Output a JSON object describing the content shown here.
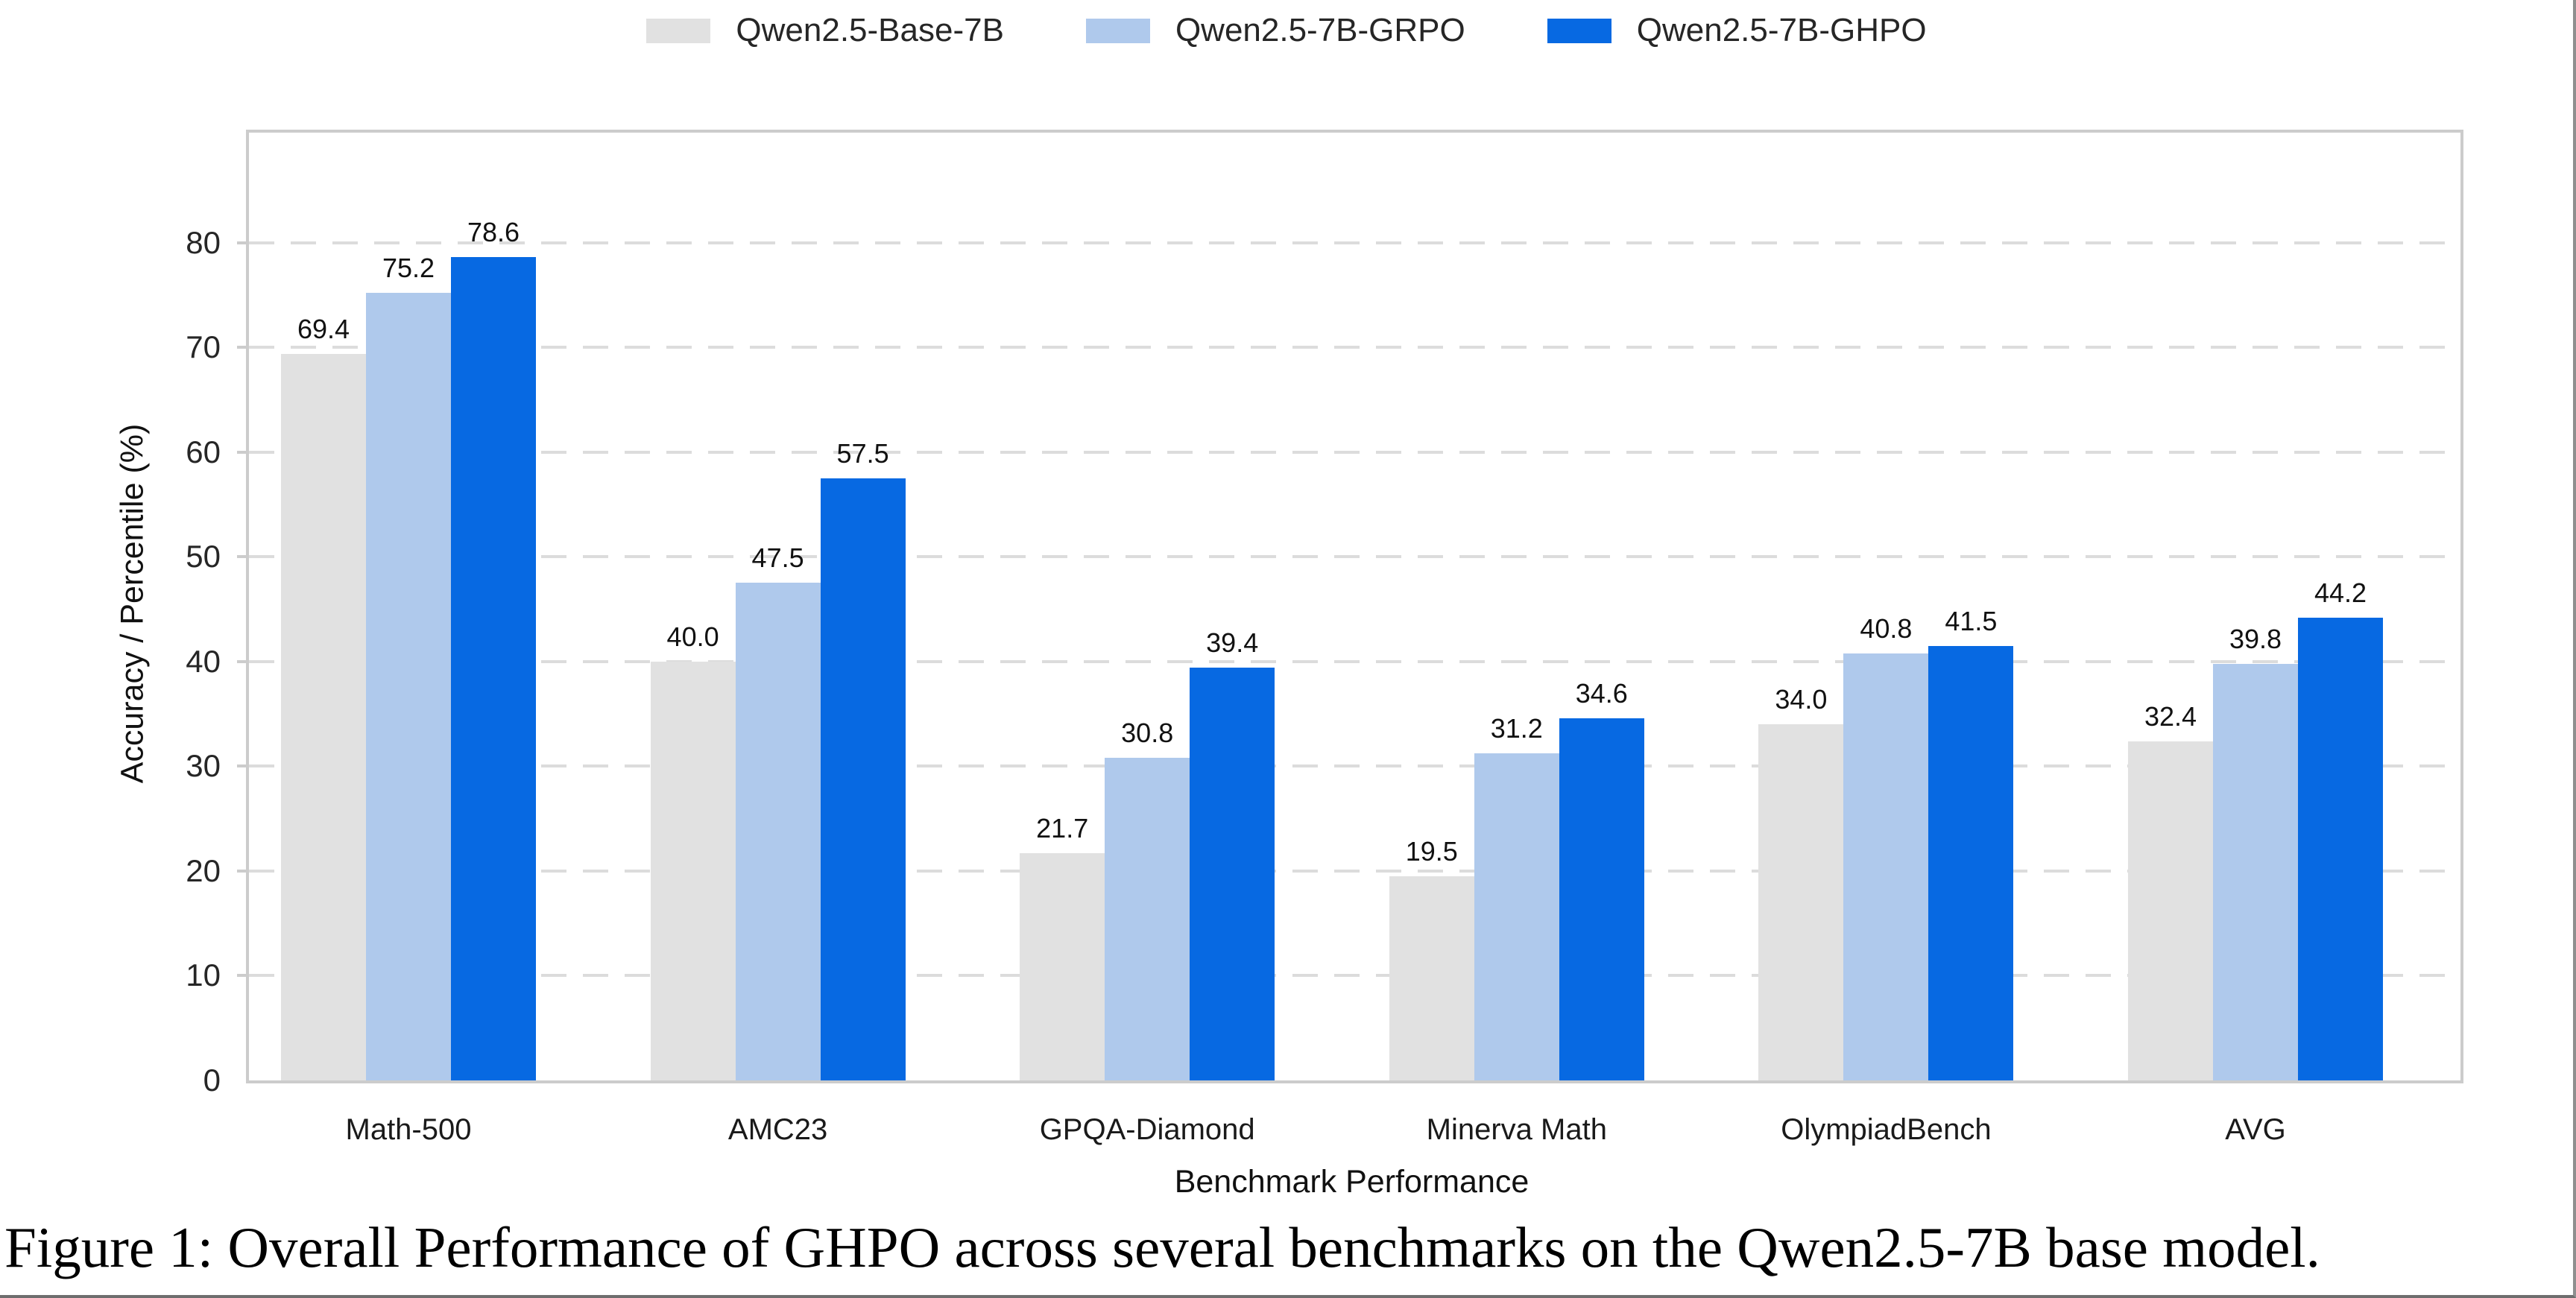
{
  "figure": {
    "caption": "Figure 1: Overall Performance of GHPO across several benchmarks on the Qwen2.5-7B base model."
  },
  "chart_data": {
    "type": "bar",
    "title": "",
    "xlabel": "Benchmark Performance",
    "ylabel": "Accuracy / Percentile (%)",
    "categories": [
      "Math-500",
      "AMC23",
      "GPQA-Diamond",
      "Minerva Math",
      "OlympiadBench",
      "AVG"
    ],
    "series": [
      {
        "name": "Qwen2.5-Base-7B",
        "color": "#e1e1e1",
        "values": [
          69.4,
          40.0,
          21.7,
          19.5,
          34.0,
          32.4
        ]
      },
      {
        "name": "Qwen2.5-7B-GRPO",
        "color": "#afc9ec",
        "values": [
          75.2,
          47.5,
          30.8,
          31.2,
          40.8,
          39.8
        ]
      },
      {
        "name": "Qwen2.5-7B-GHPO",
        "color": "#0769e2",
        "values": [
          78.6,
          57.5,
          39.4,
          34.6,
          41.5,
          44.2
        ]
      }
    ],
    "yticks": [
      0,
      10,
      20,
      30,
      40,
      50,
      60,
      70,
      80
    ],
    "ylim": [
      0,
      90.5
    ],
    "grid": "horizontal-dashed",
    "legend_position": "top-center",
    "bar_value_labels": true,
    "value_label_format": "one-decimal"
  }
}
